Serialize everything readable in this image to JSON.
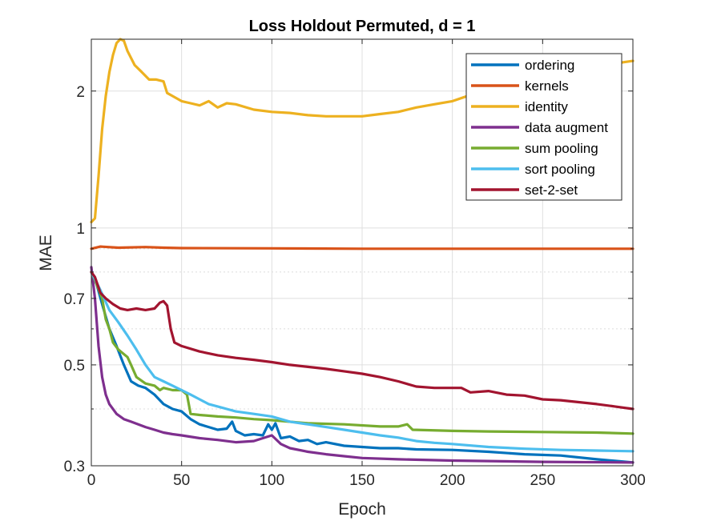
{
  "chart_data": {
    "type": "line",
    "title": "Loss Holdout Permuted, d = 1",
    "xlabel": "Epoch",
    "ylabel": "MAE",
    "xlim": [
      0,
      300
    ],
    "ylim": [
      0.3,
      2.6
    ],
    "yscale": "log",
    "grid": true,
    "legend_position": "top-right",
    "xticks": [
      0,
      50,
      100,
      150,
      200,
      250,
      300
    ],
    "xtick_labels": [
      "0",
      "50",
      "100",
      "150",
      "200",
      "250",
      "300"
    ],
    "yticks": [
      0.3,
      0.5,
      0.7,
      1,
      2
    ],
    "ytick_labels": [
      "0.3",
      "0.5",
      "0.7",
      "1",
      "2"
    ],
    "minor_yticks": [
      0.4,
      0.6,
      0.8,
      0.9
    ],
    "series": [
      {
        "name": "ordering",
        "color": "#0072BD",
        "points": [
          [
            0,
            0.8
          ],
          [
            3,
            0.75
          ],
          [
            6,
            0.68
          ],
          [
            10,
            0.6
          ],
          [
            14,
            0.55
          ],
          [
            18,
            0.5
          ],
          [
            22,
            0.46
          ],
          [
            26,
            0.45
          ],
          [
            30,
            0.445
          ],
          [
            35,
            0.43
          ],
          [
            40,
            0.41
          ],
          [
            45,
            0.4
          ],
          [
            50,
            0.395
          ],
          [
            55,
            0.38
          ],
          [
            60,
            0.37
          ],
          [
            65,
            0.365
          ],
          [
            70,
            0.36
          ],
          [
            75,
            0.362
          ],
          [
            78,
            0.375
          ],
          [
            80,
            0.358
          ],
          [
            85,
            0.35
          ],
          [
            90,
            0.352
          ],
          [
            95,
            0.35
          ],
          [
            98,
            0.37
          ],
          [
            100,
            0.36
          ],
          [
            102,
            0.372
          ],
          [
            105,
            0.345
          ],
          [
            110,
            0.348
          ],
          [
            115,
            0.34
          ],
          [
            120,
            0.342
          ],
          [
            125,
            0.335
          ],
          [
            130,
            0.338
          ],
          [
            140,
            0.332
          ],
          [
            150,
            0.33
          ],
          [
            160,
            0.328
          ],
          [
            170,
            0.328
          ],
          [
            180,
            0.326
          ],
          [
            200,
            0.325
          ],
          [
            220,
            0.322
          ],
          [
            240,
            0.318
          ],
          [
            260,
            0.316
          ],
          [
            280,
            0.31
          ],
          [
            300,
            0.305
          ]
        ]
      },
      {
        "name": "kernels",
        "color": "#D95319",
        "points": [
          [
            0,
            0.9
          ],
          [
            5,
            0.91
          ],
          [
            15,
            0.905
          ],
          [
            30,
            0.908
          ],
          [
            40,
            0.905
          ],
          [
            50,
            0.903
          ],
          [
            100,
            0.902
          ],
          [
            150,
            0.9
          ],
          [
            200,
            0.9
          ],
          [
            250,
            0.9
          ],
          [
            300,
            0.9
          ]
        ]
      },
      {
        "name": "identity",
        "color": "#EDB120",
        "points": [
          [
            0,
            1.03
          ],
          [
            2,
            1.05
          ],
          [
            4,
            1.3
          ],
          [
            6,
            1.65
          ],
          [
            8,
            1.95
          ],
          [
            10,
            2.2
          ],
          [
            12,
            2.4
          ],
          [
            14,
            2.55
          ],
          [
            16,
            2.6
          ],
          [
            18,
            2.58
          ],
          [
            20,
            2.45
          ],
          [
            24,
            2.28
          ],
          [
            28,
            2.2
          ],
          [
            32,
            2.12
          ],
          [
            36,
            2.12
          ],
          [
            40,
            2.1
          ],
          [
            42,
            1.98
          ],
          [
            45,
            1.95
          ],
          [
            50,
            1.9
          ],
          [
            55,
            1.88
          ],
          [
            60,
            1.86
          ],
          [
            65,
            1.9
          ],
          [
            70,
            1.84
          ],
          [
            75,
            1.88
          ],
          [
            80,
            1.87
          ],
          [
            90,
            1.82
          ],
          [
            100,
            1.8
          ],
          [
            110,
            1.79
          ],
          [
            120,
            1.77
          ],
          [
            130,
            1.76
          ],
          [
            140,
            1.76
          ],
          [
            150,
            1.76
          ],
          [
            160,
            1.78
          ],
          [
            170,
            1.8
          ],
          [
            180,
            1.84
          ],
          [
            190,
            1.87
          ],
          [
            200,
            1.9
          ],
          [
            210,
            1.96
          ],
          [
            220,
            2.02
          ],
          [
            230,
            2.08
          ],
          [
            240,
            2.15
          ],
          [
            250,
            2.2
          ],
          [
            260,
            2.25
          ],
          [
            270,
            2.28
          ],
          [
            280,
            2.3
          ],
          [
            290,
            2.3
          ],
          [
            300,
            2.33
          ]
        ]
      },
      {
        "name": "data augment",
        "color": "#7E2F8E",
        "points": [
          [
            0,
            0.82
          ],
          [
            2,
            0.7
          ],
          [
            4,
            0.55
          ],
          [
            6,
            0.47
          ],
          [
            8,
            0.43
          ],
          [
            10,
            0.41
          ],
          [
            14,
            0.39
          ],
          [
            18,
            0.38
          ],
          [
            22,
            0.375
          ],
          [
            26,
            0.37
          ],
          [
            30,
            0.365
          ],
          [
            35,
            0.36
          ],
          [
            40,
            0.355
          ],
          [
            45,
            0.352
          ],
          [
            50,
            0.35
          ],
          [
            60,
            0.345
          ],
          [
            70,
            0.342
          ],
          [
            80,
            0.338
          ],
          [
            90,
            0.34
          ],
          [
            95,
            0.345
          ],
          [
            100,
            0.35
          ],
          [
            105,
            0.335
          ],
          [
            110,
            0.328
          ],
          [
            120,
            0.322
          ],
          [
            130,
            0.318
          ],
          [
            140,
            0.315
          ],
          [
            150,
            0.312
          ],
          [
            170,
            0.31
          ],
          [
            200,
            0.308
          ],
          [
            250,
            0.306
          ],
          [
            300,
            0.305
          ]
        ]
      },
      {
        "name": "sum pooling",
        "color": "#77AC30",
        "points": [
          [
            0,
            0.8
          ],
          [
            3,
            0.75
          ],
          [
            6,
            0.7
          ],
          [
            8,
            0.63
          ],
          [
            10,
            0.6
          ],
          [
            12,
            0.56
          ],
          [
            15,
            0.54
          ],
          [
            20,
            0.52
          ],
          [
            22,
            0.5
          ],
          [
            25,
            0.47
          ],
          [
            30,
            0.455
          ],
          [
            35,
            0.45
          ],
          [
            38,
            0.44
          ],
          [
            40,
            0.445
          ],
          [
            45,
            0.44
          ],
          [
            50,
            0.44
          ],
          [
            53,
            0.43
          ],
          [
            55,
            0.39
          ],
          [
            60,
            0.388
          ],
          [
            70,
            0.385
          ],
          [
            80,
            0.383
          ],
          [
            90,
            0.38
          ],
          [
            100,
            0.378
          ],
          [
            120,
            0.372
          ],
          [
            140,
            0.37
          ],
          [
            160,
            0.366
          ],
          [
            170,
            0.366
          ],
          [
            175,
            0.37
          ],
          [
            178,
            0.36
          ],
          [
            200,
            0.358
          ],
          [
            220,
            0.357
          ],
          [
            250,
            0.356
          ],
          [
            280,
            0.355
          ],
          [
            300,
            0.353
          ]
        ]
      },
      {
        "name": "sort pooling",
        "color": "#4DBEEE",
        "points": [
          [
            0,
            0.8
          ],
          [
            5,
            0.73
          ],
          [
            10,
            0.66
          ],
          [
            15,
            0.62
          ],
          [
            20,
            0.58
          ],
          [
            25,
            0.54
          ],
          [
            30,
            0.5
          ],
          [
            35,
            0.47
          ],
          [
            40,
            0.46
          ],
          [
            45,
            0.45
          ],
          [
            50,
            0.44
          ],
          [
            55,
            0.43
          ],
          [
            60,
            0.42
          ],
          [
            65,
            0.41
          ],
          [
            70,
            0.405
          ],
          [
            75,
            0.4
          ],
          [
            80,
            0.395
          ],
          [
            90,
            0.39
          ],
          [
            100,
            0.385
          ],
          [
            110,
            0.375
          ],
          [
            120,
            0.37
          ],
          [
            130,
            0.365
          ],
          [
            140,
            0.36
          ],
          [
            150,
            0.355
          ],
          [
            160,
            0.35
          ],
          [
            170,
            0.346
          ],
          [
            180,
            0.34
          ],
          [
            190,
            0.337
          ],
          [
            200,
            0.335
          ],
          [
            220,
            0.33
          ],
          [
            240,
            0.327
          ],
          [
            260,
            0.325
          ],
          [
            280,
            0.324
          ],
          [
            300,
            0.323
          ]
        ]
      },
      {
        "name": "set-2-set",
        "color": "#A2142F",
        "points": [
          [
            0,
            0.8
          ],
          [
            2,
            0.78
          ],
          [
            5,
            0.72
          ],
          [
            8,
            0.7
          ],
          [
            12,
            0.68
          ],
          [
            16,
            0.665
          ],
          [
            20,
            0.66
          ],
          [
            25,
            0.665
          ],
          [
            30,
            0.66
          ],
          [
            35,
            0.665
          ],
          [
            38,
            0.685
          ],
          [
            40,
            0.69
          ],
          [
            42,
            0.675
          ],
          [
            44,
            0.6
          ],
          [
            46,
            0.56
          ],
          [
            50,
            0.55
          ],
          [
            60,
            0.535
          ],
          [
            70,
            0.525
          ],
          [
            80,
            0.518
          ],
          [
            90,
            0.513
          ],
          [
            100,
            0.507
          ],
          [
            110,
            0.5
          ],
          [
            120,
            0.495
          ],
          [
            130,
            0.49
          ],
          [
            140,
            0.484
          ],
          [
            150,
            0.478
          ],
          [
            160,
            0.47
          ],
          [
            170,
            0.46
          ],
          [
            180,
            0.448
          ],
          [
            190,
            0.445
          ],
          [
            200,
            0.445
          ],
          [
            205,
            0.445
          ],
          [
            210,
            0.435
          ],
          [
            220,
            0.438
          ],
          [
            230,
            0.43
          ],
          [
            240,
            0.428
          ],
          [
            250,
            0.42
          ],
          [
            260,
            0.418
          ],
          [
            270,
            0.414
          ],
          [
            280,
            0.41
          ],
          [
            290,
            0.405
          ],
          [
            300,
            0.4
          ]
        ]
      }
    ]
  }
}
